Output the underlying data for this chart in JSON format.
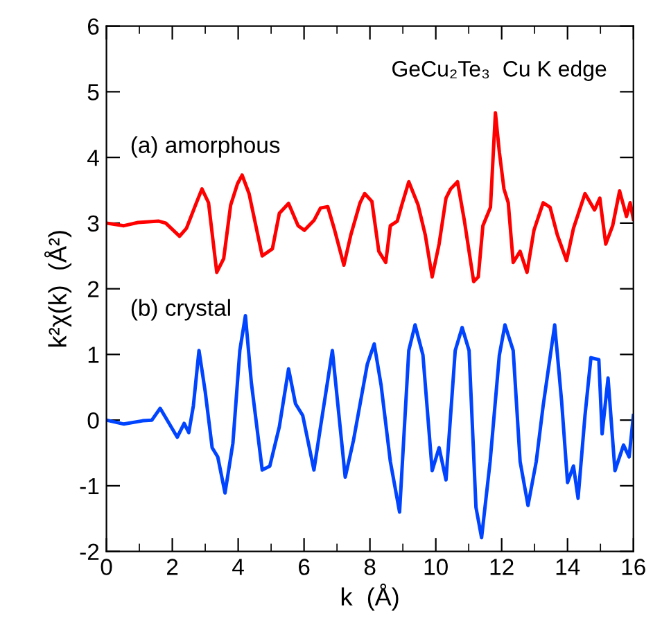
{
  "chart_data": {
    "type": "line",
    "xlabel": "k  (Å)",
    "ylabel": "k²χ(k)  (Å²)",
    "annotations": [
      "GeCu₂Te₃  Cu K edge"
    ],
    "xlim": [
      0,
      16
    ],
    "xticks": [
      0,
      2,
      4,
      6,
      8,
      10,
      12,
      14,
      16
    ],
    "ylim": [
      -2,
      6
    ],
    "yticks": [
      -2,
      -1,
      0,
      1,
      2,
      3,
      4,
      5,
      6
    ],
    "grid": false,
    "legend": false,
    "line_style": "solid",
    "marker": "none",
    "series": [
      {
        "name": "(a) amorphous",
        "color": "#ff0000",
        "x": [
          0,
          0.53,
          0.96,
          1.59,
          1.8,
          2.22,
          2.43,
          2.7,
          2.9,
          3.1,
          3.35,
          3.56,
          3.77,
          3.98,
          4.12,
          4.33,
          4.73,
          5.04,
          5.25,
          5.53,
          5.82,
          6.01,
          6.3,
          6.5,
          6.72,
          6.93,
          7.21,
          7.42,
          7.7,
          7.84,
          8.06,
          8.27,
          8.48,
          8.62,
          8.83,
          8.97,
          9.18,
          9.46,
          9.68,
          9.89,
          10.1,
          10.31,
          10.45,
          10.66,
          10.87,
          11.15,
          11.29,
          11.43,
          11.66,
          11.81,
          11.93,
          12.07,
          12.2,
          12.35,
          12.56,
          12.77,
          12.98,
          13.26,
          13.47,
          13.69,
          13.97,
          14.18,
          14.53,
          14.82,
          14.98,
          15.16,
          15.37,
          15.58,
          15.79,
          15.9,
          16
        ],
        "values": [
          3.0,
          2.96,
          3.01,
          3.03,
          3.0,
          2.8,
          2.92,
          3.27,
          3.52,
          3.31,
          2.25,
          2.46,
          3.27,
          3.6,
          3.73,
          3.45,
          2.5,
          2.61,
          3.15,
          3.3,
          2.96,
          2.89,
          3.04,
          3.23,
          3.25,
          2.89,
          2.36,
          2.82,
          3.31,
          3.45,
          3.33,
          2.57,
          2.4,
          2.96,
          3.03,
          3.28,
          3.63,
          3.28,
          2.82,
          2.18,
          2.68,
          3.38,
          3.52,
          3.63,
          3.03,
          2.11,
          2.18,
          2.96,
          3.24,
          4.68,
          4.08,
          3.52,
          3.31,
          2.4,
          2.57,
          2.25,
          2.89,
          3.31,
          3.24,
          2.82,
          2.43,
          2.92,
          3.45,
          3.2,
          3.38,
          2.68,
          2.96,
          3.49,
          3.1,
          3.31,
          3.06
        ]
      },
      {
        "name": "(b) crystal",
        "color": "#0044ff",
        "x": [
          0,
          0.53,
          1.1,
          1.38,
          1.63,
          2.15,
          2.36,
          2.5,
          2.64,
          2.81,
          3.0,
          3.21,
          3.38,
          3.6,
          3.84,
          4.05,
          4.22,
          4.4,
          4.73,
          4.96,
          5.25,
          5.53,
          5.74,
          5.96,
          6.3,
          6.51,
          6.86,
          7.25,
          7.5,
          7.92,
          8.13,
          8.34,
          8.62,
          8.9,
          9.18,
          9.37,
          9.61,
          9.89,
          10.1,
          10.31,
          10.59,
          10.8,
          11.01,
          11.22,
          11.39,
          11.65,
          11.93,
          12.1,
          12.35,
          12.56,
          12.8,
          13.05,
          13.26,
          13.61,
          13.82,
          14.0,
          14.18,
          14.32,
          14.53,
          14.71,
          14.95,
          15.05,
          15.23,
          15.44,
          15.7,
          15.87,
          16
        ],
        "values": [
          0.0,
          -0.06,
          -0.01,
          0.0,
          0.18,
          -0.26,
          -0.05,
          -0.19,
          0.22,
          1.06,
          0.43,
          -0.42,
          -0.56,
          -1.11,
          -0.35,
          1.06,
          1.59,
          0.57,
          -0.76,
          -0.7,
          -0.1,
          0.78,
          0.25,
          0.07,
          -0.76,
          -0.07,
          1.06,
          -0.87,
          -0.31,
          0.85,
          1.16,
          0.53,
          -0.63,
          -1.4,
          1.06,
          1.45,
          0.99,
          -0.77,
          -0.42,
          -0.91,
          1.06,
          1.41,
          1.06,
          -1.33,
          -1.79,
          -0.63,
          0.99,
          1.45,
          1.06,
          -0.63,
          -1.3,
          -0.63,
          0.22,
          1.45,
          0.29,
          -0.95,
          -0.7,
          -1.19,
          0.07,
          0.95,
          0.92,
          -0.21,
          0.64,
          -0.77,
          -0.38,
          -0.56,
          0.07
        ]
      }
    ]
  }
}
